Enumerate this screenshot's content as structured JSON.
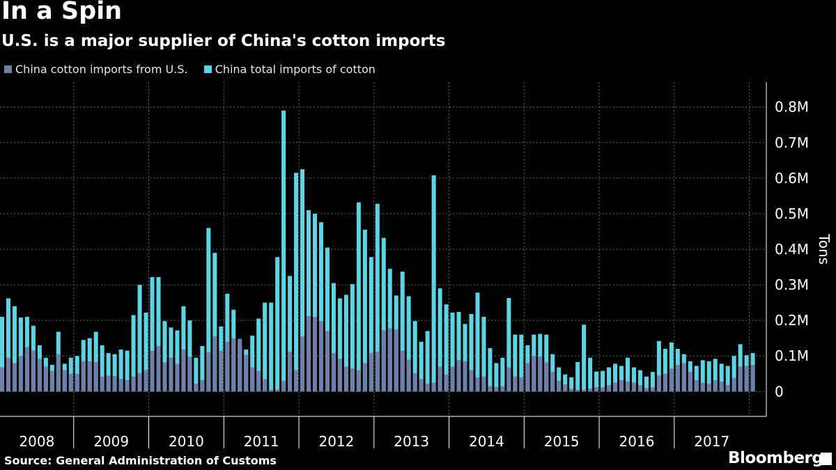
{
  "title": "In a Spin",
  "subtitle": "U.S. is a major supplier of China's cotton imports",
  "source": "Source: General Administration of Customs",
  "brand": "Bloomberg",
  "colors": {
    "background": "#000000",
    "us_series": "#6f80a8",
    "total_series": "#5dd3e3",
    "grid": "#6a6a6a",
    "text": "#ffffff"
  },
  "chart_data": {
    "type": "bar",
    "ylabel": "Tons",
    "ylim": [
      -70000,
      870000
    ],
    "yticks": [
      {
        "value": 0,
        "label": "0"
      },
      {
        "value": 100000,
        "label": "0.1M"
      },
      {
        "value": 200000,
        "label": "0.2M"
      },
      {
        "value": 300000,
        "label": "0.3M"
      },
      {
        "value": 400000,
        "label": "0.4M"
      },
      {
        "value": 500000,
        "label": "0.5M"
      },
      {
        "value": 600000,
        "label": "0.6M"
      },
      {
        "value": 700000,
        "label": "0.7M"
      },
      {
        "value": 800000,
        "label": "0.8M"
      }
    ],
    "grid": true,
    "year_labels": [
      "2008",
      "2009",
      "2010",
      "2011",
      "2012",
      "2013",
      "2014",
      "2015",
      "2016",
      "2017"
    ],
    "legend_position": "top-left",
    "series": [
      {
        "name": "China total imports of cotton",
        "values": [
          210000,
          262000,
          240000,
          208000,
          210000,
          185000,
          130000,
          95000,
          75000,
          168000,
          78000,
          95000,
          100000,
          145000,
          150000,
          168000,
          130000,
          108000,
          105000,
          118000,
          115000,
          215000,
          300000,
          222000,
          322000,
          322000,
          198000,
          180000,
          172000,
          240000,
          200000,
          95000,
          128000,
          460000,
          390000,
          183000,
          275000,
          230000,
          132000,
          118000,
          157000,
          205000,
          250000,
          250000,
          378000,
          790000,
          325000,
          615000,
          625000,
          510000,
          500000,
          476000,
          405000,
          305000,
          262000,
          272000,
          302000,
          532000,
          455000,
          378000,
          528000,
          432000,
          345000,
          270000,
          337000,
          268000,
          198000,
          140000,
          170000,
          608000,
          290000,
          245000,
          222000,
          224000,
          190000,
          218000,
          278000,
          210000,
          122000,
          80000,
          95000,
          263000,
          160000,
          160000,
          130000,
          160000,
          162000,
          160000,
          105000,
          68000,
          48000,
          40000,
          83000,
          188000,
          95000,
          56000,
          58000,
          68000,
          78000,
          72000,
          95000,
          68000,
          60000,
          42000,
          55000,
          142000,
          120000,
          138000,
          120000,
          105000,
          85000,
          72000,
          88000,
          85000,
          92000,
          78000,
          72000,
          100000,
          133000,
          102000,
          108000
        ]
      },
      {
        "name": "China cotton imports from U.S.",
        "values": [
          68000,
          95000,
          80000,
          100000,
          125000,
          115000,
          92000,
          70000,
          58000,
          105000,
          60000,
          50000,
          50000,
          85000,
          85000,
          83000,
          42000,
          45000,
          44000,
          36000,
          32000,
          42000,
          52000,
          60000,
          115000,
          128000,
          82000,
          95000,
          78000,
          118000,
          98000,
          22000,
          32000,
          110000,
          155000,
          115000,
          140000,
          150000,
          148000,
          103000,
          68000,
          58000,
          35000,
          5000,
          5000,
          30000,
          112000,
          60000,
          155000,
          212000,
          210000,
          198000,
          170000,
          108000,
          92000,
          70000,
          65000,
          60000,
          80000,
          108000,
          112000,
          172000,
          178000,
          175000,
          115000,
          90000,
          52000,
          35000,
          22000,
          25000,
          70000,
          48000,
          70000,
          88000,
          85000,
          60000,
          40000,
          42000,
          15000,
          12000,
          15000,
          68000,
          42000,
          40000,
          80000,
          100000,
          98000,
          82000,
          55000,
          30000,
          20000,
          8000,
          5000,
          5000,
          8000,
          12000,
          12000,
          18000,
          25000,
          32000,
          28000,
          25000,
          18000,
          10000,
          12000,
          45000,
          50000,
          65000,
          75000,
          80000,
          55000,
          32000,
          25000,
          22000,
          32000,
          28000,
          18000,
          38000,
          70000,
          72000,
          75000
        ]
      }
    ]
  }
}
